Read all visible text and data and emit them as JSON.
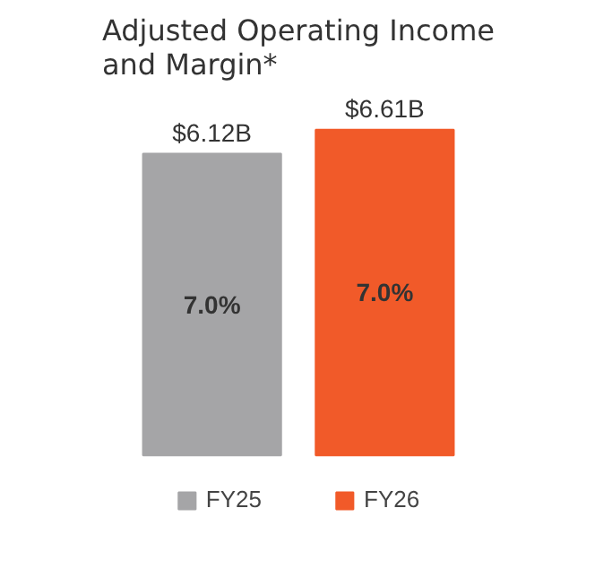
{
  "chart_data": {
    "type": "bar",
    "title": "Adjusted Operating Income\nand Margin*",
    "categories": [
      null
    ],
    "series": [
      {
        "name": "FY25",
        "color": "#a5a5a7",
        "values": [
          6.12
        ],
        "value_labels": [
          "$6.12B"
        ]
      },
      {
        "name": "FY26",
        "color": "#f15a29",
        "values": [
          6.61
        ],
        "value_labels": [
          "$6.61B"
        ]
      }
    ],
    "annotations": [
      "7.0%",
      "7.0%"
    ],
    "legend": "bottom"
  }
}
